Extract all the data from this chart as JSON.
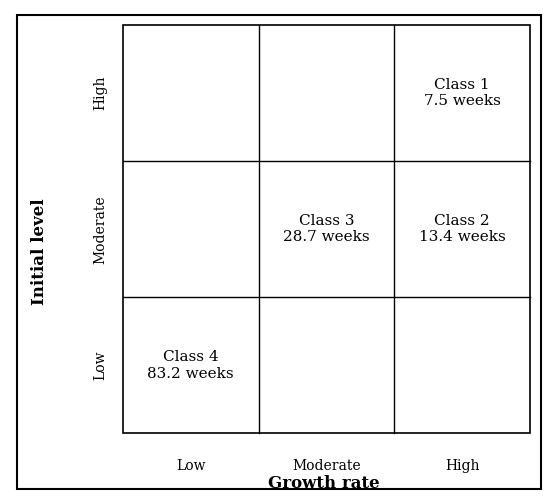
{
  "title_x": "Growth rate",
  "title_y": "Initial level",
  "x_tick_labels": [
    "Low",
    "Moderate",
    "High"
  ],
  "y_tick_labels": [
    "Low",
    "Moderate",
    "High"
  ],
  "cells": [
    {
      "row": 2,
      "col": 0,
      "label": "Class 4\n83.2 weeks"
    },
    {
      "row": 1,
      "col": 1,
      "label": "Class 3\n28.7 weeks"
    },
    {
      "row": 1,
      "col": 2,
      "label": "Class 2\n13.4 weeks"
    },
    {
      "row": 0,
      "col": 2,
      "label": "Class 1\n7.5 weeks"
    }
  ],
  "grid_color": "#000000",
  "text_color": "#000000",
  "background_color": "#ffffff",
  "outer_box_color": "#000000",
  "cell_fontsize": 11,
  "axis_label_fontsize": 12,
  "tick_fontsize": 10,
  "fig_width": 5.58,
  "fig_height": 5.04
}
